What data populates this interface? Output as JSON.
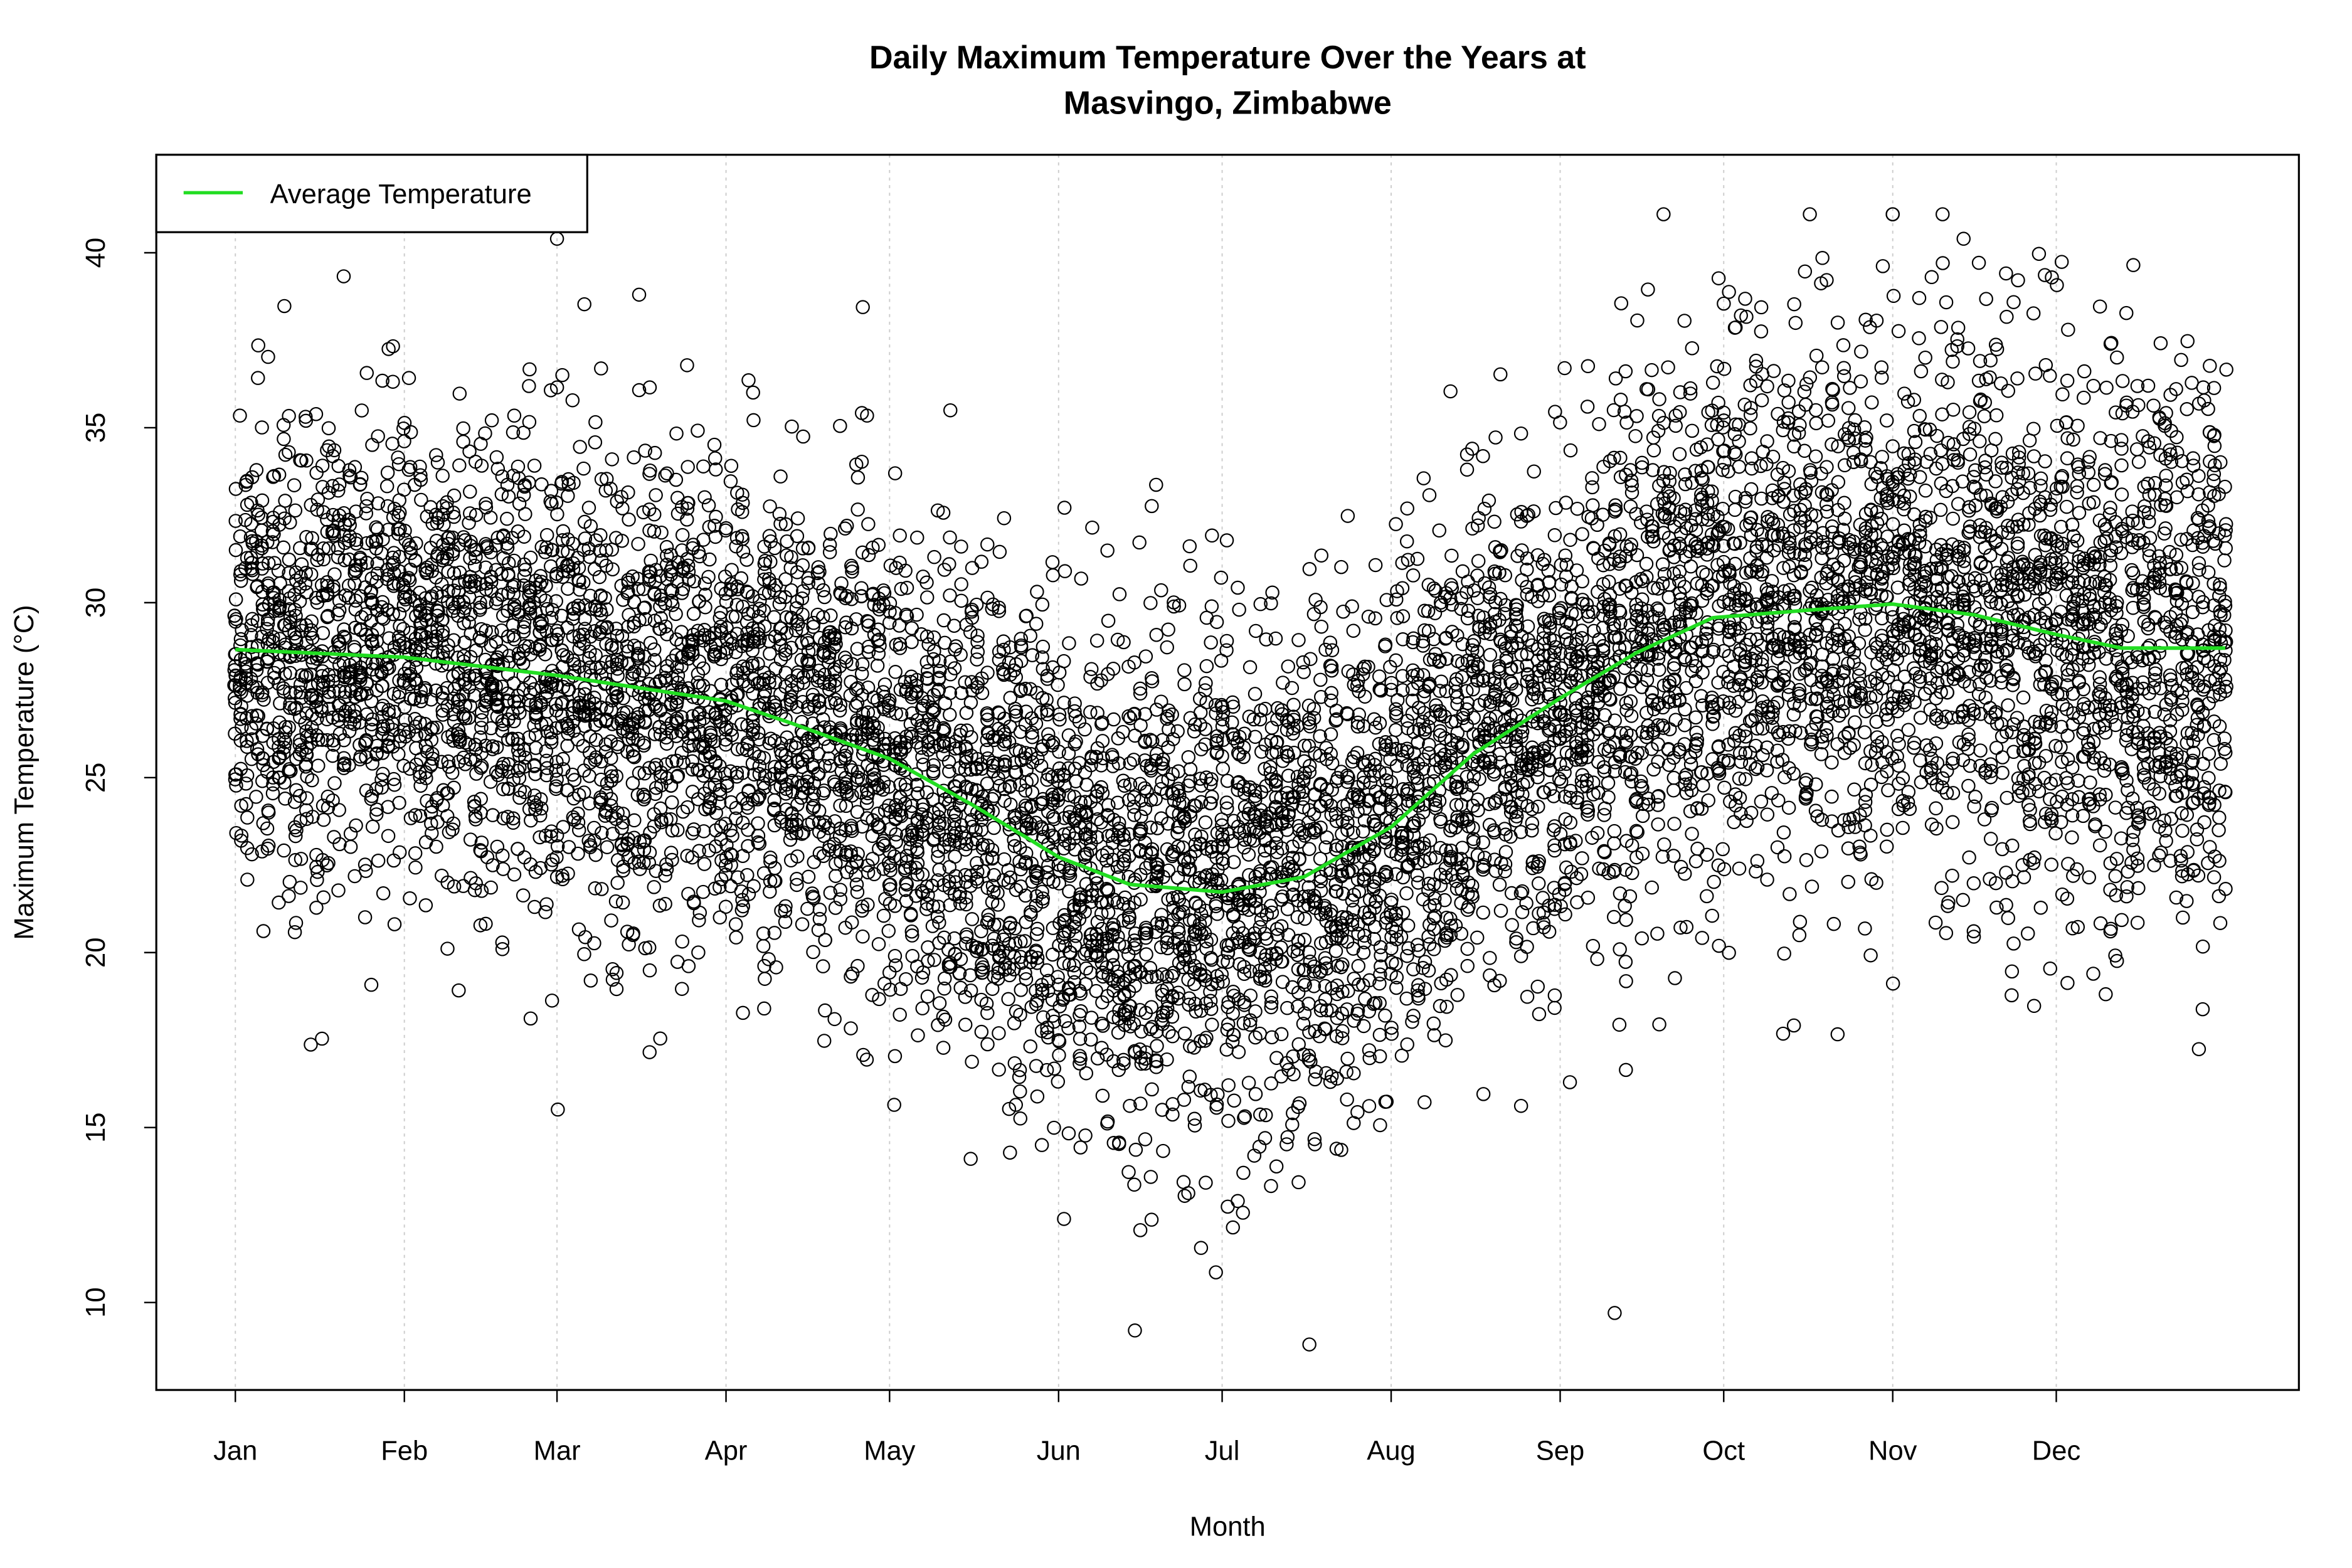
{
  "chart_data": {
    "type": "scatter",
    "title": "Daily Maximum Temperature Over the Years at\nMasvingo, Zimbabwe",
    "title_lines": [
      "Daily Maximum Temperature Over the Years at",
      "Masvingo, Zimbabwe"
    ],
    "xlabel": "Month",
    "ylabel": "Maximum Temperature (°C)",
    "x_unit": "day of year",
    "xlim": [
      -13.5,
      379.5
    ],
    "ylim": [
      7.5,
      42.8
    ],
    "x_ticks": [
      {
        "label": "Jan",
        "day": 1
      },
      {
        "label": "Feb",
        "day": 32
      },
      {
        "label": "Mar",
        "day": 60
      },
      {
        "label": "Apr",
        "day": 91
      },
      {
        "label": "May",
        "day": 121
      },
      {
        "label": "Jun",
        "day": 152
      },
      {
        "label": "Jul",
        "day": 182
      },
      {
        "label": "Aug",
        "day": 213
      },
      {
        "label": "Sep",
        "day": 244
      },
      {
        "label": "Oct",
        "day": 274
      },
      {
        "label": "Nov",
        "day": 305
      },
      {
        "label": "Dec",
        "day": 335
      }
    ],
    "y_ticks": [
      10,
      15,
      20,
      25,
      30,
      35,
      40
    ],
    "grid": "vertical dotted lines at month ticks",
    "legend": {
      "position": "top-left",
      "entries": [
        {
          "label": "Average Temperature",
          "color": "#22dd22"
        }
      ]
    },
    "series": [
      {
        "name": "Average Temperature",
        "kind": "line",
        "color": "#22dd22",
        "points": [
          [
            1,
            28.66
          ],
          [
            32,
            28.44
          ],
          [
            60,
            27.92
          ],
          [
            91,
            27.19
          ],
          [
            104,
            26.5
          ],
          [
            121,
            25.54
          ],
          [
            136,
            24.24
          ],
          [
            152,
            22.73
          ],
          [
            165,
            21.95
          ],
          [
            182,
            21.73
          ],
          [
            197,
            22.16
          ],
          [
            213,
            23.59
          ],
          [
            228,
            25.67
          ],
          [
            244,
            27.27
          ],
          [
            258,
            28.57
          ],
          [
            272,
            29.57
          ],
          [
            289,
            29.78
          ],
          [
            305,
            29.96
          ],
          [
            320,
            29.65
          ],
          [
            335,
            29.09
          ],
          [
            347,
            28.7
          ],
          [
            366,
            28.7
          ]
        ]
      },
      {
        "kind": "points",
        "marker": "open circle",
        "color": "#000000",
        "observed_range": {
          "min": 8.8,
          "max": 41.1
        },
        "extremes": [
          [
            305,
            41.1
          ],
          [
            318,
            40.4
          ],
          [
            60,
            40.4
          ],
          [
            198,
            8.8
          ],
          [
            166,
            9.2
          ],
          [
            254,
            9.7
          ]
        ]
      }
    ]
  }
}
